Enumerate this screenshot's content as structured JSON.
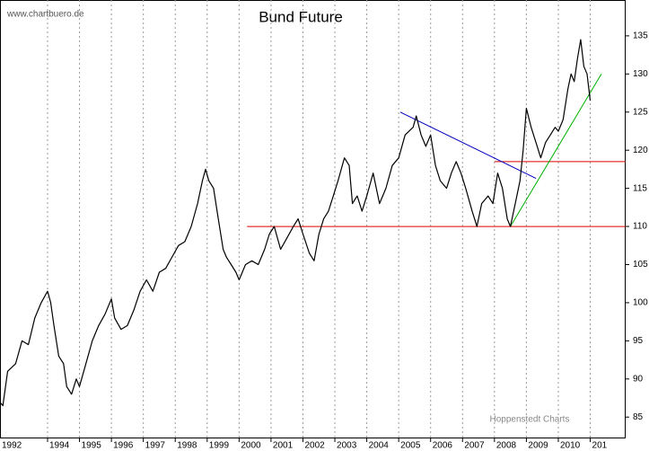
{
  "chart_data": {
    "type": "line",
    "title": "Bund Future",
    "source": "www.chartbuero.de",
    "credit": "Hoppenstedt Charts",
    "color": "#000000",
    "grid": true,
    "x": [
      1992.5,
      1992.6,
      1992.75,
      1993.0,
      1993.2,
      1993.4,
      1993.6,
      1993.8,
      1994.0,
      1994.1,
      1994.2,
      1994.35,
      1994.5,
      1994.6,
      1994.75,
      1994.9,
      1995.0,
      1995.2,
      1995.4,
      1995.6,
      1995.8,
      1996.0,
      1996.1,
      1996.3,
      1996.5,
      1996.7,
      1996.9,
      1997.1,
      1997.3,
      1997.5,
      1997.7,
      1997.9,
      1998.1,
      1998.3,
      1998.5,
      1998.7,
      1998.85,
      1998.95,
      1999.05,
      1999.2,
      1999.35,
      1999.5,
      1999.6,
      1999.75,
      1999.9,
      2000.0,
      2000.2,
      2000.4,
      2000.6,
      2000.8,
      2000.95,
      2001.1,
      2001.3,
      2001.5,
      2001.7,
      2001.85,
      2002.0,
      2002.2,
      2002.35,
      2002.5,
      2002.65,
      2002.8,
      2002.95,
      2003.1,
      2003.3,
      2003.45,
      2003.55,
      2003.7,
      2003.85,
      2004.0,
      2004.2,
      2004.4,
      2004.6,
      2004.8,
      2005.0,
      2005.2,
      2005.45,
      2005.55,
      2005.7,
      2005.85,
      2006.0,
      2006.15,
      2006.3,
      2006.5,
      2006.65,
      2006.8,
      2006.95,
      2007.1,
      2007.3,
      2007.45,
      2007.6,
      2007.8,
      2007.95,
      2008.1,
      2008.25,
      2008.4,
      2008.5,
      2008.65,
      2008.8,
      2008.9,
      2009.0,
      2009.15,
      2009.3,
      2009.45,
      2009.6,
      2009.75,
      2009.9,
      2010.0,
      2010.15,
      2010.3,
      2010.4,
      2010.5,
      2010.6,
      2010.7,
      2010.8,
      2010.9,
      2011.0
    ],
    "values": [
      87,
      86.5,
      91,
      92,
      95,
      94.5,
      98,
      100,
      101.5,
      100,
      97,
      93,
      92,
      89,
      88,
      90,
      89,
      92,
      95,
      97,
      98.5,
      100.5,
      98,
      96.5,
      97,
      99,
      101.5,
      103,
      101.5,
      104,
      104.5,
      106,
      107.5,
      108,
      110,
      113,
      116,
      117.5,
      116,
      115,
      111,
      107,
      106,
      105,
      104,
      103,
      105,
      105.5,
      105,
      107,
      109,
      110,
      107,
      108.5,
      110,
      111,
      109,
      106.5,
      105.5,
      109,
      111,
      112,
      114,
      116,
      119,
      118,
      113,
      114,
      112,
      114,
      117,
      113,
      115,
      118,
      119,
      122,
      123,
      124.5,
      122,
      120.5,
      122,
      118,
      116,
      115,
      117,
      118.5,
      117,
      115,
      112,
      110,
      113,
      114,
      113,
      117,
      115,
      111,
      110,
      113,
      116,
      120,
      125.5,
      123,
      121,
      119,
      121,
      122,
      123,
      122.5,
      124,
      128,
      130,
      129,
      132,
      134.5,
      131,
      130,
      126.5
    ],
    "lines": [
      {
        "color": "#e00000",
        "x": [
          2000.25,
          2012.11
        ],
        "y": [
          110,
          110
        ]
      },
      {
        "color": "#e00000",
        "x": [
          2008.0,
          2012.11
        ],
        "y": [
          118.5,
          118.5
        ]
      },
      {
        "color": "#0000c0",
        "x": [
          2005.05,
          2009.3
        ],
        "y": [
          125,
          116.3
        ]
      },
      {
        "color": "#00b000",
        "x": [
          2008.5,
          2011.35
        ],
        "y": [
          110,
          130
        ]
      }
    ],
    "xlim": [
      1992.51,
      2012.11
    ],
    "xticks": [
      1992,
      1994,
      1995,
      1996,
      1997,
      1998,
      1999,
      2000,
      2001,
      2002,
      2003,
      2004,
      2005,
      2006,
      2007,
      2008,
      2009,
      2010,
      {
        "value": 2011,
        "label": "201"
      }
    ],
    "ylim": [
      82.2,
      139.7
    ],
    "yticks": [
      85,
      90,
      95,
      100,
      105,
      110,
      115,
      120,
      125,
      130,
      135
    ]
  }
}
